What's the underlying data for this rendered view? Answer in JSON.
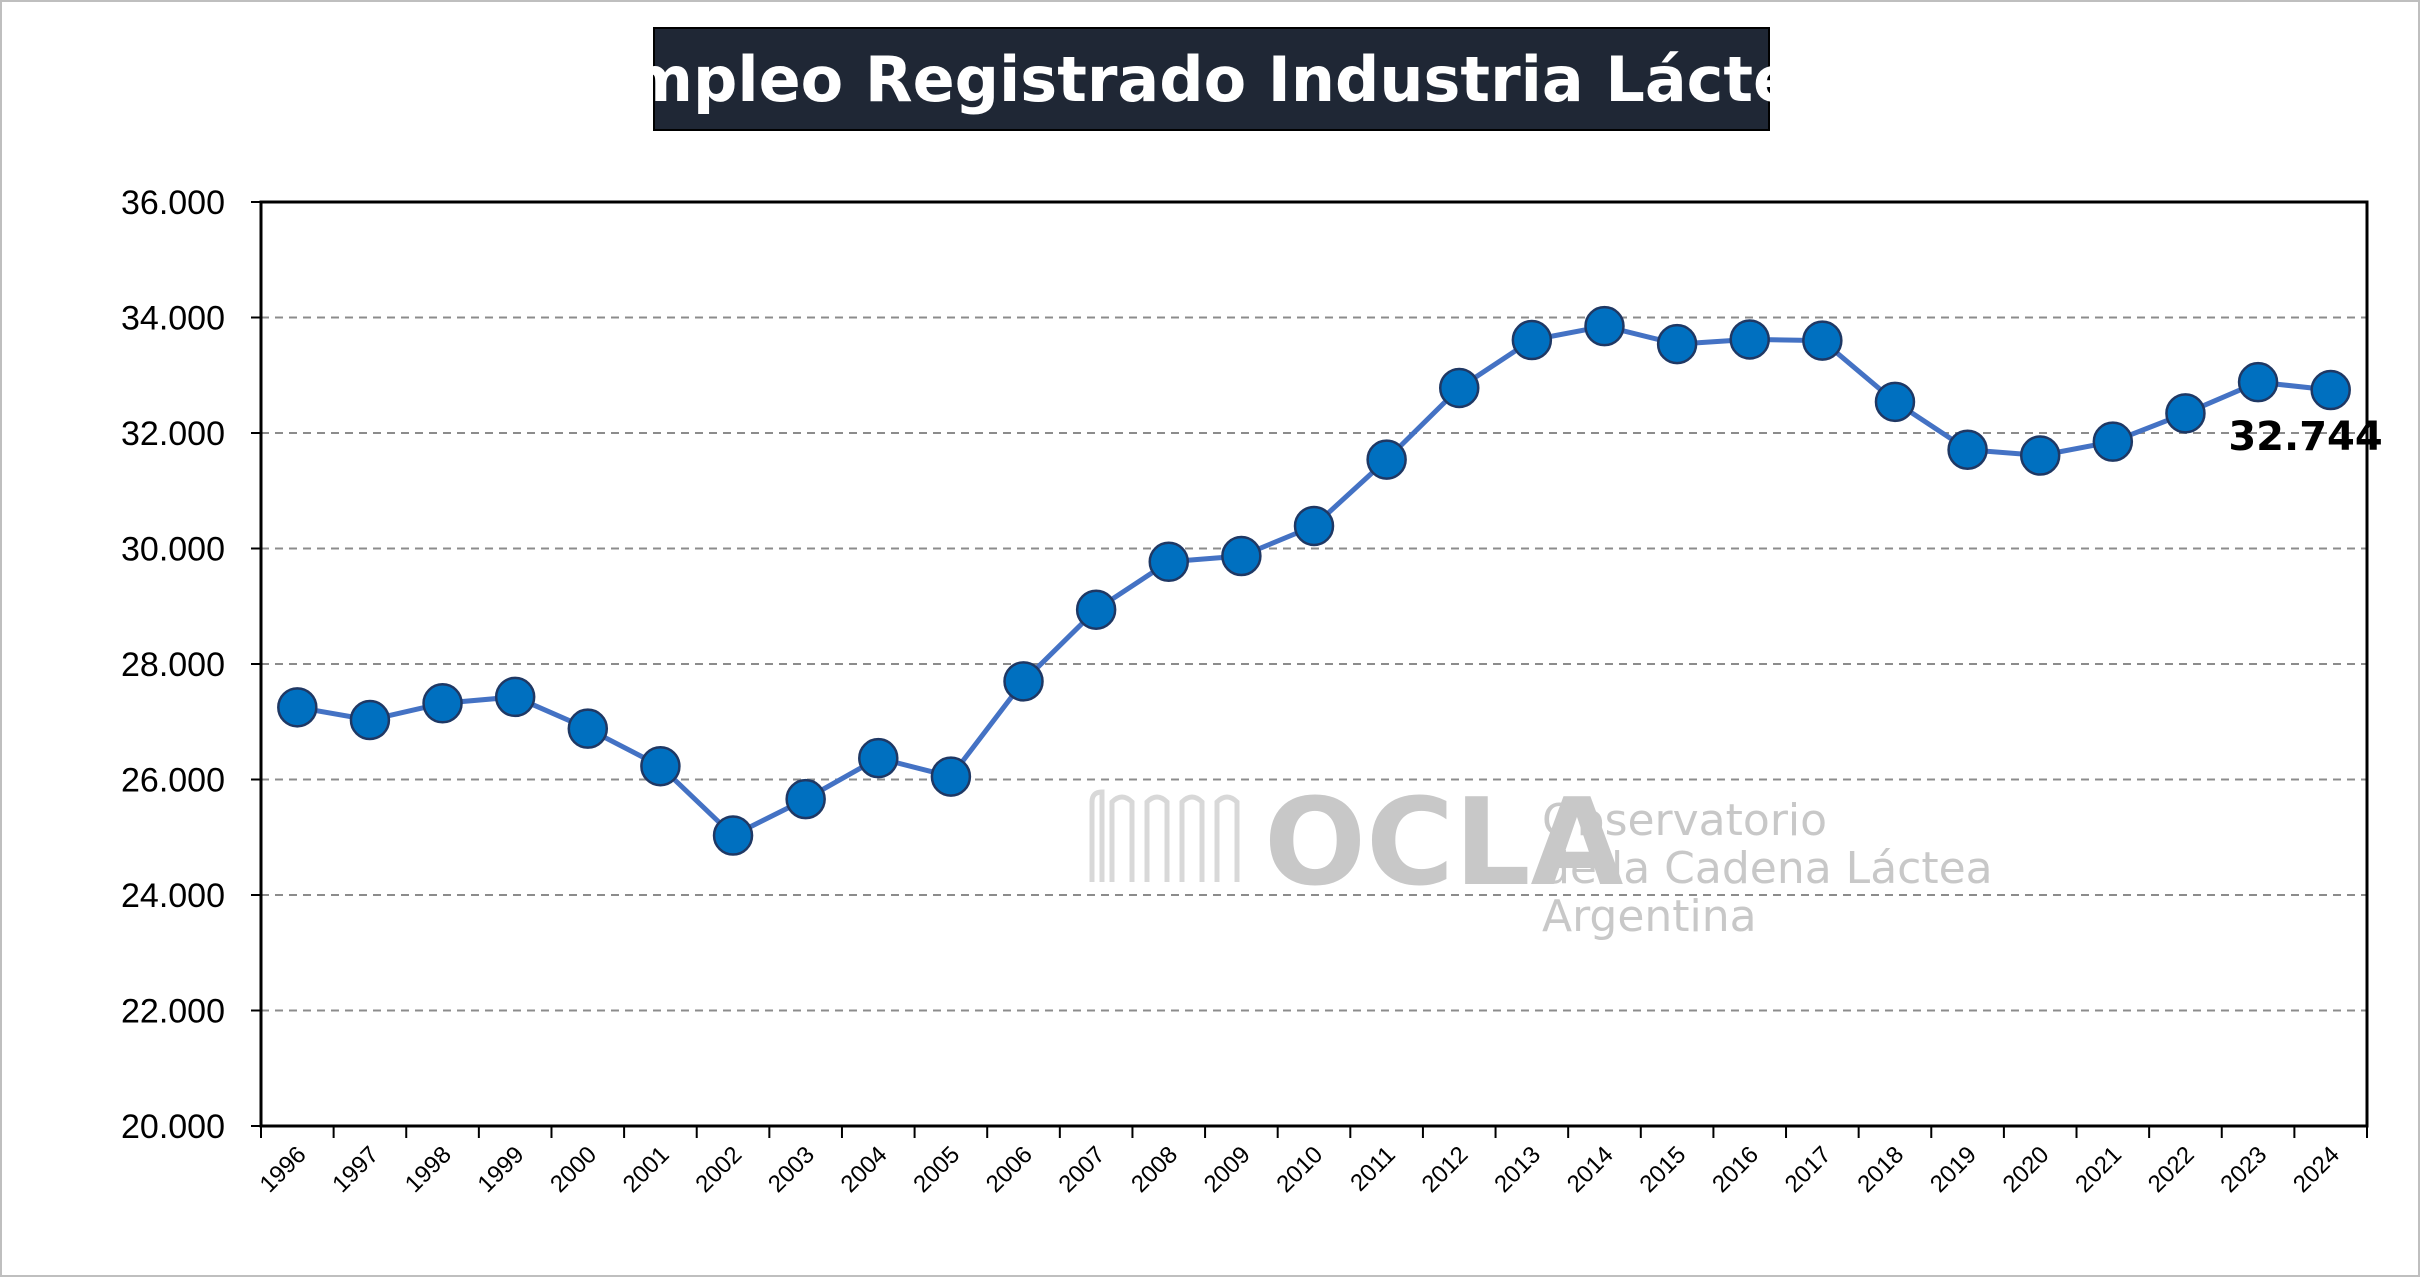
{
  "chart_data": {
    "type": "line",
    "title": "Empleo Registrado Industria Láctea",
    "categories": [
      "1996",
      "1997",
      "1998",
      "1999",
      "2000",
      "2001",
      "2002",
      "2003",
      "2004",
      "2005",
      "2006",
      "2007",
      "2008",
      "2009",
      "2010",
      "2011",
      "2012",
      "2013",
      "2014",
      "2015",
      "2016",
      "2017",
      "2018",
      "2019",
      "2020",
      "2021",
      "2022",
      "2023",
      "2024"
    ],
    "series": [
      {
        "values": [
          27250,
          27030,
          27320,
          27430,
          26880,
          26230,
          25030,
          25660,
          26370,
          26050,
          27700,
          28940,
          29770,
          29870,
          30390,
          31540,
          32780,
          33610,
          33850,
          33540,
          33620,
          33600,
          32540,
          31710,
          31610,
          31850,
          32340,
          32880,
          32744
        ],
        "color": "#4472c4",
        "marker_color": "#0070c0"
      }
    ],
    "ylim": [
      20000,
      36000
    ],
    "yticks": [
      {
        "value": 20000,
        "label": "20.000"
      },
      {
        "value": 22000,
        "label": "22.000"
      },
      {
        "value": 24000,
        "label": "24.000"
      },
      {
        "value": 26000,
        "label": "26.000"
      },
      {
        "value": 28000,
        "label": "28.000"
      },
      {
        "value": 30000,
        "label": "30.000"
      },
      {
        "value": 32000,
        "label": "32.000"
      },
      {
        "value": 34000,
        "label": "34.000"
      },
      {
        "value": 36000,
        "label": "36.000"
      }
    ],
    "grid": true,
    "annotation": {
      "label": "32.744",
      "category": "2024"
    },
    "xlabel": "",
    "ylabel": ""
  },
  "watermark": {
    "logo_text": "OCLA",
    "line1": "Observatorio",
    "line2": "de la Cadena Láctea",
    "line3": "Argentina"
  }
}
